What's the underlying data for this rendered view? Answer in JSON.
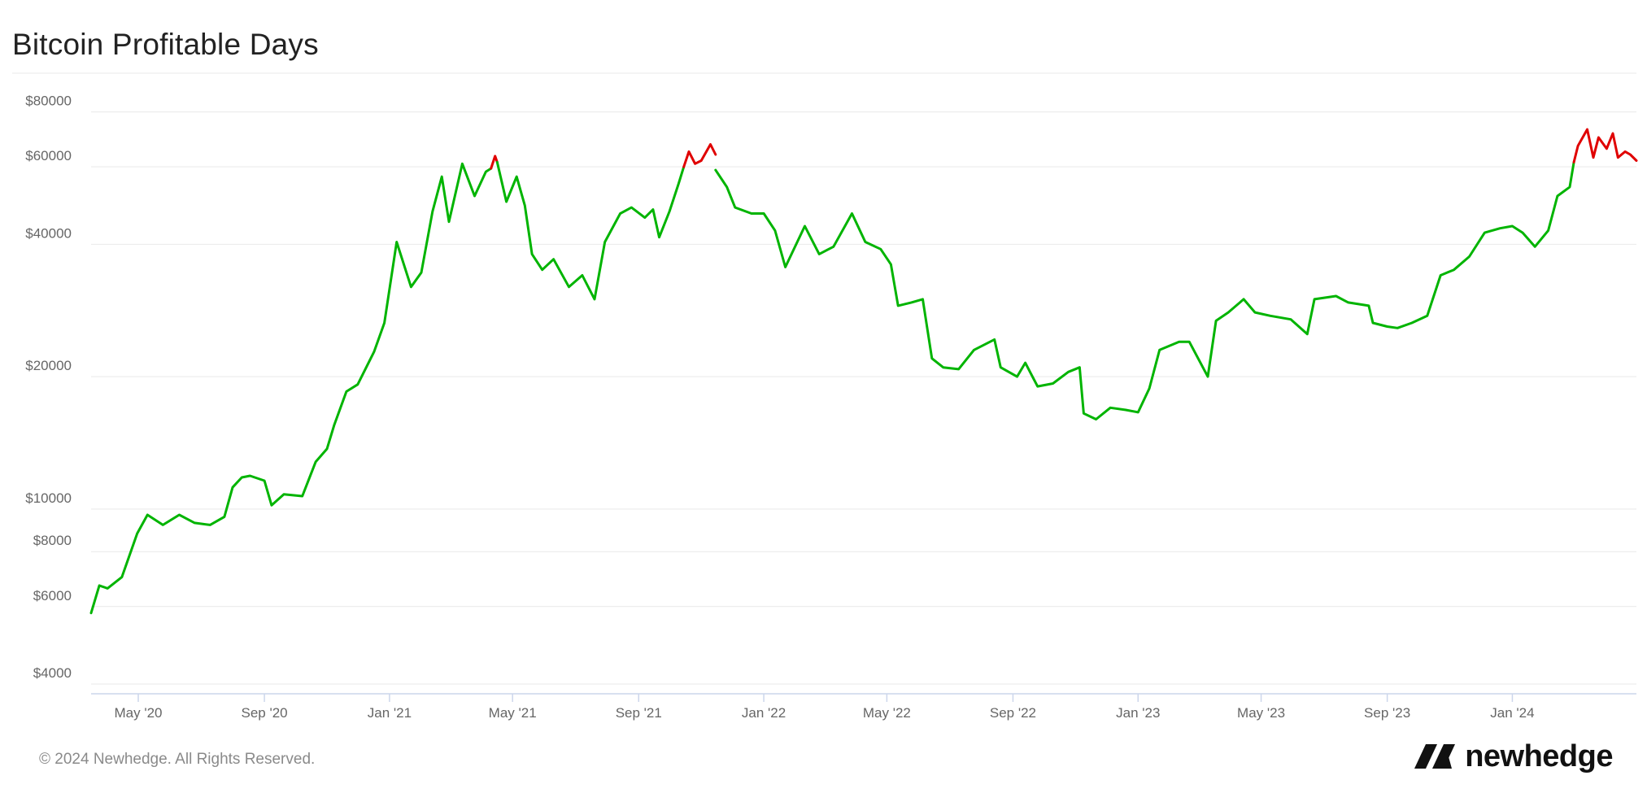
{
  "page": {
    "title": "Bitcoin Profitable Days",
    "footer": "© 2024 Newhedge. All Rights Reserved.",
    "brand": {
      "name": "newhedge",
      "icon": "newhedge-logo-icon"
    }
  },
  "colors": {
    "profitable": "#00b400",
    "unprofitable": "#e00000",
    "grid": "#e9e9e9",
    "axis_label": "#666666"
  },
  "chart_data": {
    "type": "line",
    "title": "Bitcoin Profitable Days",
    "xlabel": "",
    "ylabel": "",
    "y_scale": "log",
    "ylim": [
      3800,
      98000
    ],
    "xlim": [
      "2020-03-16",
      "2024-05-01"
    ],
    "grid": true,
    "legend": "none",
    "y_ticks": [
      {
        "value": 4000,
        "label": "$4000"
      },
      {
        "value": 6000,
        "label": "$6000"
      },
      {
        "value": 8000,
        "label": "$8000"
      },
      {
        "value": 10000,
        "label": "$10000"
      },
      {
        "value": 20000,
        "label": "$20000"
      },
      {
        "value": 40000,
        "label": "$40000"
      },
      {
        "value": 60000,
        "label": "$60000"
      },
      {
        "value": 80000,
        "label": "$80000"
      }
    ],
    "x_ticks": [
      {
        "date": "2020-05-01",
        "label": "May '20"
      },
      {
        "date": "2020-09-01",
        "label": "Sep '20"
      },
      {
        "date": "2021-01-01",
        "label": "Jan '21"
      },
      {
        "date": "2021-05-01",
        "label": "May '21"
      },
      {
        "date": "2021-09-01",
        "label": "Sep '21"
      },
      {
        "date": "2022-01-01",
        "label": "Jan '22"
      },
      {
        "date": "2022-05-01",
        "label": "May '22"
      },
      {
        "date": "2022-09-01",
        "label": "Sep '22"
      },
      {
        "date": "2023-01-01",
        "label": "Jan '23"
      },
      {
        "date": "2023-05-01",
        "label": "May '23"
      },
      {
        "date": "2023-09-01",
        "label": "Sep '23"
      },
      {
        "date": "2024-01-01",
        "label": "Jan '24"
      }
    ],
    "series": [
      {
        "color": "#00b400",
        "x": [
          "2020-03-16",
          "2020-03-24",
          "2020-04-01",
          "2020-04-15",
          "2020-04-30",
          "2020-05-10",
          "2020-05-25",
          "2020-06-10",
          "2020-06-25",
          "2020-07-10",
          "2020-07-24",
          "2020-08-01",
          "2020-08-10",
          "2020-08-18",
          "2020-09-01",
          "2020-09-08",
          "2020-09-20",
          "2020-10-08",
          "2020-10-21",
          "2020-11-01",
          "2020-11-08",
          "2020-11-20",
          "2020-12-01",
          "2020-12-17",
          "2020-12-27",
          "2021-01-08",
          "2021-01-22",
          "2021-02-01",
          "2021-02-12",
          "2021-02-21",
          "2021-02-28",
          "2021-03-13",
          "2021-03-25",
          "2021-04-05",
          "2021-04-10"
        ],
        "y": [
          5800,
          6700,
          6600,
          7000,
          8800,
          9700,
          9200,
          9700,
          9300,
          9200,
          9600,
          11200,
          11800,
          11900,
          11600,
          10200,
          10800,
          10700,
          12800,
          13700,
          15500,
          18500,
          19200,
          22800,
          26500,
          40500,
          32000,
          34500,
          47500,
          57000,
          45000,
          61000,
          51500,
          58500,
          59500
        ]
      },
      {
        "color": "#e00000",
        "x": [
          "2021-04-10",
          "2021-04-14",
          "2021-04-16"
        ],
        "y": [
          59500,
          63500,
          61500
        ]
      },
      {
        "color": "#00b400",
        "x": [
          "2021-04-16",
          "2021-04-25",
          "2021-05-05",
          "2021-05-13",
          "2021-05-20",
          "2021-05-30",
          "2021-06-10",
          "2021-06-25",
          "2021-07-08",
          "2021-07-20",
          "2021-07-30",
          "2021-08-14",
          "2021-08-25",
          "2021-09-07",
          "2021-09-15",
          "2021-09-21",
          "2021-10-01",
          "2021-10-10",
          "2021-10-15"
        ],
        "y": [
          61500,
          50000,
          57000,
          49000,
          38000,
          35000,
          37000,
          32000,
          34000,
          30000,
          40500,
          47000,
          48500,
          46000,
          48000,
          41500,
          47500,
          55000,
          60000
        ]
      },
      {
        "color": "#e00000",
        "x": [
          "2021-10-15",
          "2021-10-20",
          "2021-10-26",
          "2021-11-01",
          "2021-11-10",
          "2021-11-15"
        ],
        "y": [
          60000,
          65000,
          61000,
          62000,
          67500,
          64000
        ]
      },
      {
        "color": "#00b400",
        "x": [
          "2021-11-15",
          "2021-11-26",
          "2021-12-04",
          "2021-12-20",
          "2022-01-01",
          "2022-01-12",
          "2022-01-22",
          "2022-02-10",
          "2022-02-24",
          "2022-03-10",
          "2022-03-28",
          "2022-04-10",
          "2022-04-25",
          "2022-05-05",
          "2022-05-12",
          "2022-05-25",
          "2022-06-05",
          "2022-06-14",
          "2022-06-25",
          "2022-07-10",
          "2022-07-25",
          "2022-08-14",
          "2022-08-20",
          "2022-09-05",
          "2022-09-13",
          "2022-09-25",
          "2022-10-10",
          "2022-10-25",
          "2022-11-05",
          "2022-11-09",
          "2022-11-21",
          "2022-12-05",
          "2022-12-20",
          "2023-01-01",
          "2023-01-12",
          "2023-01-22",
          "2023-02-10",
          "2023-02-20",
          "2023-03-10",
          "2023-03-18",
          "2023-03-30",
          "2023-04-14",
          "2023-04-25",
          "2023-05-10",
          "2023-05-30",
          "2023-06-15",
          "2023-06-22",
          "2023-07-13",
          "2023-07-25",
          "2023-08-14",
          "2023-08-18",
          "2023-09-01",
          "2023-09-11",
          "2023-09-25",
          "2023-10-10",
          "2023-10-23",
          "2023-11-05",
          "2023-11-20",
          "2023-12-05",
          "2023-12-20",
          "2024-01-01",
          "2024-01-11",
          "2024-01-23",
          "2024-02-05",
          "2024-02-14",
          "2024-02-26",
          "2024-03-01"
        ],
        "y": [
          59000,
          54000,
          48500,
          47000,
          47000,
          43000,
          35500,
          44000,
          38000,
          39500,
          47000,
          40500,
          39000,
          36000,
          29000,
          29500,
          30000,
          22000,
          21000,
          20800,
          23000,
          24300,
          21000,
          20000,
          21500,
          19000,
          19300,
          20500,
          21000,
          16500,
          16000,
          17000,
          16800,
          16600,
          18800,
          23000,
          24000,
          24000,
          20000,
          26800,
          28000,
          30000,
          28000,
          27500,
          27000,
          25000,
          30000,
          30500,
          29500,
          29000,
          26500,
          26000,
          25800,
          26500,
          27500,
          34000,
          35000,
          37500,
          42500,
          43500,
          44000,
          42500,
          39500,
          43000,
          51500,
          54000,
          61500
        ]
      },
      {
        "color": "#e00000",
        "x": [
          "2024-03-01",
          "2024-03-05",
          "2024-03-14",
          "2024-03-20",
          "2024-03-25",
          "2024-04-02",
          "2024-04-08",
          "2024-04-13",
          "2024-04-20",
          "2024-04-25",
          "2024-05-01"
        ],
        "y": [
          61500,
          67000,
          73000,
          63000,
          70000,
          66000,
          71500,
          63000,
          65000,
          64000,
          62000
        ]
      }
    ]
  }
}
